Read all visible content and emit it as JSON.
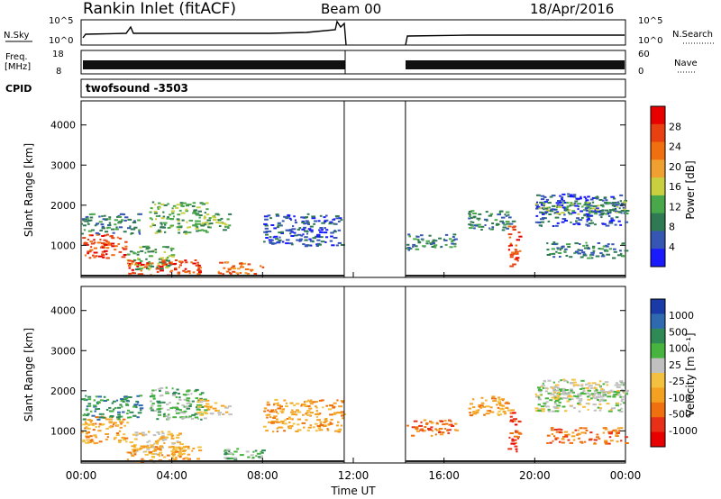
{
  "header": {
    "title": "Rankin Inlet (fitACF)",
    "beam": "Beam 00",
    "date": "18/Apr/2016"
  },
  "top_panels": {
    "nsky_label": "N.Sky",
    "nsky_ticks": [
      "10^5",
      "10^0"
    ],
    "nsearch_label": "N.Search",
    "nsearch_ticks": [
      "10^5",
      "10^0"
    ],
    "freq_label_1": "Freq.",
    "freq_label_2": "[MHz]",
    "freq_ticks": [
      "18",
      "8"
    ],
    "nave_label": "Nave",
    "nave_ticks": [
      "60",
      "0"
    ],
    "cpid_label": "CPID",
    "cpid_value": "twofsound -3503"
  },
  "colors": {
    "power_scale": [
      "#1a1aff",
      "#3656b4",
      "#2f7a52",
      "#49a84a",
      "#c8d040",
      "#f0a030",
      "#f07010",
      "#e84010",
      "#e80000"
    ],
    "velocity_scale": [
      "#1a3aa8",
      "#2f6ab0",
      "#2f8a56",
      "#46b43e",
      "#c0c0c0",
      "#f4c040",
      "#f4a020",
      "#f07010",
      "#e83018",
      "#e80000"
    ]
  },
  "chart_data": [
    {
      "type": "heatmap",
      "name": "power",
      "ylabel": "Slant Range [km]",
      "ylim": [
        200,
        4600
      ],
      "yticks": [
        "1000",
        "2000",
        "3000",
        "4000"
      ],
      "xlim": [
        0,
        24
      ],
      "xticks": [
        "00:00",
        "04:00",
        "08:00",
        "12:00",
        "16:00",
        "20:00",
        "00:00"
      ],
      "colorbar_label": "Power [dB]",
      "colorbar_ticks": [
        "4",
        "8",
        "12",
        "16",
        "20",
        "24",
        "28"
      ],
      "no_data_interval_hours": [
        11.6,
        14.3
      ],
      "regions": [
        {
          "t": [
            0.0,
            2.0
          ],
          "r": [
            700,
            1300
          ],
          "level": 7
        },
        {
          "t": [
            0.0,
            2.6
          ],
          "r": [
            1300,
            1800
          ],
          "level": 2
        },
        {
          "t": [
            2.0,
            4.0
          ],
          "r": [
            400,
            1000
          ],
          "level": 3
        },
        {
          "t": [
            2.0,
            5.2
          ],
          "r": [
            250,
            650
          ],
          "level": 7
        },
        {
          "t": [
            3.0,
            5.5
          ],
          "r": [
            1300,
            2100
          ],
          "level": 3
        },
        {
          "t": [
            5.0,
            6.5
          ],
          "r": [
            1400,
            1800
          ],
          "level": 3
        },
        {
          "t": [
            6.0,
            8.0
          ],
          "r": [
            300,
            600
          ],
          "level": 6
        },
        {
          "t": [
            8.0,
            11.5
          ],
          "r": [
            1000,
            1800
          ],
          "level": 1
        },
        {
          "t": [
            14.3,
            16.5
          ],
          "r": [
            900,
            1300
          ],
          "level": 2
        },
        {
          "t": [
            17.0,
            19.0
          ],
          "r": [
            1400,
            1900
          ],
          "level": 2
        },
        {
          "t": [
            18.8,
            19.3
          ],
          "r": [
            500,
            1500
          ],
          "level": 7
        },
        {
          "t": [
            20.0,
            24.0
          ],
          "r": [
            1500,
            2300
          ],
          "level": 1
        },
        {
          "t": [
            20.5,
            24.0
          ],
          "r": [
            700,
            1100
          ],
          "level": 2
        },
        {
          "t": [
            20.0,
            24.0
          ],
          "r": [
            1800,
            2100
          ],
          "level": 3
        }
      ]
    },
    {
      "type": "heatmap",
      "name": "velocity",
      "ylabel": "Slant Range [km]",
      "ylim": [
        200,
        4600
      ],
      "yticks": [
        "1000",
        "2000",
        "3000",
        "4000"
      ],
      "xlim": [
        0,
        24
      ],
      "xticks": [
        "00:00",
        "04:00",
        "08:00",
        "12:00",
        "16:00",
        "20:00",
        "00:00"
      ],
      "xlabel": "Time UT",
      "colorbar_label": "Velocity [m s⁻¹]",
      "colorbar_ticks": [
        "1000",
        "500",
        "100",
        "25",
        "-25",
        "-100",
        "-500",
        "-1000"
      ],
      "no_data_interval_hours": [
        11.6,
        14.3
      ],
      "regions": [
        {
          "t": [
            0.0,
            2.0
          ],
          "r": [
            700,
            1400
          ],
          "level": 6
        },
        {
          "t": [
            0.0,
            2.6
          ],
          "r": [
            1300,
            1900
          ],
          "level": 2
        },
        {
          "t": [
            2.0,
            4.5
          ],
          "r": [
            400,
            1000
          ],
          "level": 5
        },
        {
          "t": [
            2.0,
            5.2
          ],
          "r": [
            250,
            650
          ],
          "level": 6
        },
        {
          "t": [
            3.0,
            5.5
          ],
          "r": [
            1300,
            2100
          ],
          "level": 3
        },
        {
          "t": [
            5.0,
            6.5
          ],
          "r": [
            1400,
            1800
          ],
          "level": 5
        },
        {
          "t": [
            6.0,
            8.0
          ],
          "r": [
            300,
            600
          ],
          "level": 3
        },
        {
          "t": [
            8.0,
            11.5
          ],
          "r": [
            1000,
            1800
          ],
          "level": 6
        },
        {
          "t": [
            14.3,
            16.5
          ],
          "r": [
            900,
            1300
          ],
          "level": 7
        },
        {
          "t": [
            17.0,
            19.0
          ],
          "r": [
            1400,
            1900
          ],
          "level": 6
        },
        {
          "t": [
            18.8,
            19.3
          ],
          "r": [
            500,
            1500
          ],
          "level": 8
        },
        {
          "t": [
            20.0,
            24.0
          ],
          "r": [
            1500,
            2300
          ],
          "level": 4
        },
        {
          "t": [
            20.5,
            24.0
          ],
          "r": [
            700,
            1100
          ],
          "level": 7
        },
        {
          "t": [
            20.0,
            24.0
          ],
          "r": [
            1800,
            2100
          ],
          "level": 4
        }
      ]
    }
  ]
}
